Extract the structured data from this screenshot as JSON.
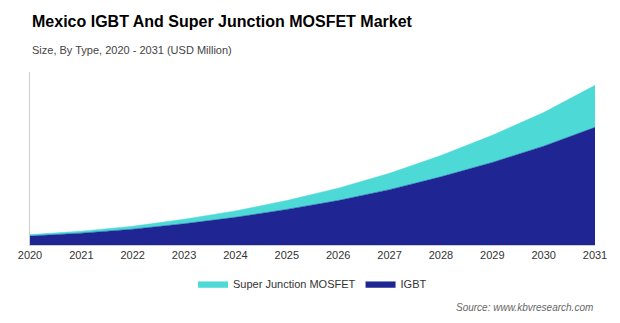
{
  "chart_data": {
    "type": "area",
    "stacked": true,
    "title": "Mexico IGBT And Super Junction MOSFET Market",
    "subtitle": "Size, By Type, 2020 - 2031 (USD Million)",
    "source": "Source: www.kbvresearch.com",
    "x": [
      2020,
      2021,
      2022,
      2023,
      2024,
      2025,
      2026,
      2027,
      2028,
      2029,
      2030,
      2031
    ],
    "series": [
      {
        "name": "IGBT",
        "color": "#1f2694",
        "values": [
          18,
          24,
          32,
          43,
          56,
          72,
          90,
          112,
          138,
          167,
          200,
          238
        ]
      },
      {
        "name": "Super Junction MOSFET",
        "color": "#4dd9d5",
        "values": [
          3,
          4,
          6,
          9,
          13,
          18,
          25,
          33,
          43,
          55,
          68,
          85
        ]
      }
    ],
    "xlim": [
      2020,
      2031
    ],
    "xticks": [
      2020,
      2021,
      2022,
      2023,
      2024,
      2025,
      2026,
      2027,
      2028,
      2029,
      2030,
      2031
    ],
    "ylim": [
      0,
      350
    ],
    "tick_labels": "x",
    "grid": false,
    "legend": "bottom"
  }
}
